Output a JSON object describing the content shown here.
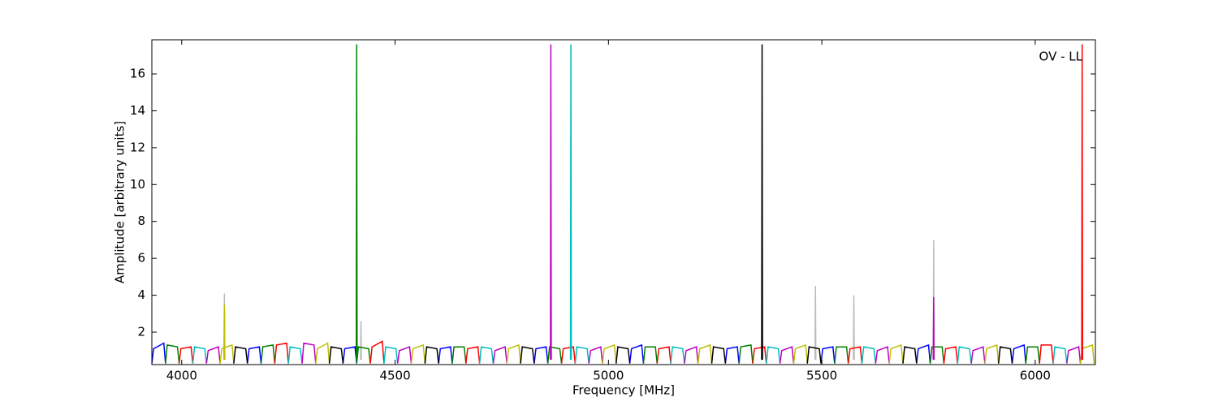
{
  "chart_data": {
    "type": "line",
    "annotation": "OV - LL",
    "xlabel": "Frequency [MHz]",
    "ylabel": "Amplitude [arbitrary units]",
    "xlim": [
      3930,
      6141
    ],
    "ylim": [
      0.24,
      17.85
    ],
    "xticks": [
      4000,
      4500,
      5000,
      5500,
      6000
    ],
    "yticks": [
      2,
      4,
      6,
      8,
      10,
      12,
      14,
      16
    ],
    "series": [
      {
        "color": "#bbbbbb",
        "x": [
          4099,
          4100,
          4101,
          null,
          4419,
          4420,
          4421,
          null,
          5484,
          5485,
          5486,
          null,
          5574,
          5575,
          5576,
          null,
          5761,
          5762,
          5763
        ],
        "values": [
          0.5,
          4.1,
          0.5,
          null,
          0.5,
          2.6,
          0.5,
          null,
          0.5,
          4.5,
          0.5,
          null,
          0.5,
          4.0,
          0.5,
          null,
          0.5,
          7.0,
          0.5
        ]
      },
      {
        "color": "#0000ff",
        "x": [
          3930,
          3934,
          3958,
          3962,
          null,
          4154,
          4158,
          4182,
          4186,
          null,
          4378,
          4382,
          4406,
          4410,
          null,
          4602,
          4606,
          4630,
          4634,
          null,
          4826,
          4830,
          4854,
          4858,
          null,
          5050,
          5054,
          5078,
          5082,
          null,
          5274,
          5278,
          5302,
          5306,
          null,
          5498,
          5502,
          5526,
          5530,
          null,
          5722,
          5726,
          5750,
          5754,
          null,
          5946,
          5950,
          5974,
          5978
        ],
        "values": [
          0.3,
          1.1,
          1.4,
          0.3,
          null,
          0.3,
          1.1,
          1.2,
          0.3,
          null,
          0.3,
          1.1,
          1.2,
          0.3,
          null,
          0.3,
          1.1,
          1.2,
          0.3,
          null,
          0.3,
          1.1,
          1.2,
          0.3,
          null,
          0.3,
          1.1,
          1.3,
          0.3,
          null,
          0.3,
          1.1,
          1.2,
          0.3,
          null,
          0.3,
          1.1,
          1.2,
          0.3,
          null,
          0.3,
          1.1,
          1.3,
          0.3,
          null,
          0.3,
          1.1,
          1.3,
          0.3
        ]
      },
      {
        "color": "#008000",
        "x": [
          3962,
          3966,
          3990,
          3994,
          null,
          4186,
          4190,
          4214,
          4218,
          null,
          4410,
          4414,
          4438,
          4442,
          null,
          4634,
          4638,
          4662,
          4666,
          null,
          4858,
          4862,
          4886,
          4890,
          null,
          5082,
          5086,
          5110,
          5114,
          null,
          5306,
          5310,
          5334,
          5338,
          null,
          5530,
          5534,
          5558,
          5562,
          null,
          5754,
          5758,
          5782,
          5786,
          null,
          5978,
          5982,
          6006,
          6010
        ],
        "values": [
          0.3,
          1.3,
          1.2,
          0.3,
          null,
          0.3,
          1.2,
          1.3,
          0.3,
          null,
          0.3,
          1.2,
          1.1,
          0.3,
          null,
          0.3,
          1.2,
          1.2,
          0.3,
          null,
          0.3,
          1.2,
          1.1,
          0.3,
          null,
          0.3,
          1.2,
          1.2,
          0.3,
          null,
          0.3,
          1.2,
          1.3,
          0.3,
          null,
          0.3,
          1.2,
          1.2,
          0.3,
          null,
          0.3,
          1.2,
          1.2,
          0.3,
          null,
          0.3,
          1.2,
          1.2,
          0.3
        ]
      },
      {
        "color": "#ff0000",
        "x": [
          3994,
          3998,
          4022,
          4026,
          null,
          4218,
          4222,
          4246,
          4250,
          null,
          4442,
          4446,
          4470,
          4474,
          null,
          4666,
          4670,
          4694,
          4698,
          null,
          4890,
          4894,
          4918,
          4922,
          null,
          5114,
          5118,
          5142,
          5146,
          null,
          5338,
          5342,
          5366,
          5370,
          null,
          5562,
          5566,
          5590,
          5594,
          null,
          5786,
          5790,
          5814,
          5818,
          null,
          6010,
          6014,
          6038,
          6042
        ],
        "values": [
          0.3,
          1.1,
          1.2,
          0.3,
          null,
          0.3,
          1.3,
          1.4,
          0.3,
          null,
          0.3,
          1.2,
          1.5,
          0.3,
          null,
          0.3,
          1.1,
          1.2,
          0.3,
          null,
          0.3,
          1.1,
          1.2,
          0.3,
          null,
          0.3,
          1.1,
          1.2,
          0.3,
          null,
          0.3,
          1.1,
          1.2,
          0.3,
          null,
          0.3,
          1.1,
          1.2,
          0.3,
          null,
          0.3,
          1.1,
          1.2,
          0.3,
          null,
          0.3,
          1.3,
          1.3,
          0.3
        ]
      },
      {
        "color": "#00bfbf",
        "x": [
          4026,
          4030,
          4054,
          4058,
          null,
          4250,
          4254,
          4278,
          4282,
          null,
          4474,
          4478,
          4502,
          4506,
          null,
          4698,
          4702,
          4726,
          4730,
          null,
          4922,
          4926,
          4950,
          4954,
          null,
          5146,
          5150,
          5174,
          5178,
          null,
          5370,
          5374,
          5398,
          5402,
          null,
          5594,
          5598,
          5622,
          5626,
          null,
          5818,
          5822,
          5846,
          5850,
          null,
          6042,
          6046,
          6070,
          6074
        ],
        "values": [
          0.3,
          1.2,
          1.1,
          0.3,
          null,
          0.3,
          1.2,
          1.1,
          0.3,
          null,
          0.3,
          1.2,
          1.1,
          0.3,
          null,
          0.3,
          1.2,
          1.1,
          0.3,
          null,
          0.3,
          1.2,
          1.1,
          0.3,
          null,
          0.3,
          1.2,
          1.1,
          0.3,
          null,
          0.3,
          1.2,
          1.1,
          0.3,
          null,
          0.3,
          1.2,
          1.1,
          0.3,
          null,
          0.3,
          1.2,
          1.1,
          0.3,
          null,
          0.3,
          1.2,
          1.1,
          0.3
        ]
      },
      {
        "color": "#bf00bf",
        "x": [
          4058,
          4062,
          4086,
          4090,
          null,
          4282,
          4286,
          4310,
          4314,
          null,
          4506,
          4510,
          4534,
          4538,
          null,
          4730,
          4734,
          4758,
          4762,
          null,
          4954,
          4958,
          4982,
          4986,
          null,
          5178,
          5182,
          5206,
          5210,
          null,
          5402,
          5406,
          5430,
          5434,
          null,
          5626,
          5630,
          5654,
          5658,
          null,
          5850,
          5854,
          5878,
          5882,
          null,
          6074,
          6078,
          6102,
          6106
        ],
        "values": [
          0.3,
          1.0,
          1.2,
          0.3,
          null,
          0.3,
          1.4,
          1.3,
          0.3,
          null,
          0.3,
          1.0,
          1.2,
          0.3,
          null,
          0.3,
          1.0,
          1.2,
          0.3,
          null,
          0.3,
          1.0,
          1.2,
          0.3,
          null,
          0.3,
          1.0,
          1.2,
          0.3,
          null,
          0.3,
          1.0,
          1.2,
          0.3,
          null,
          0.3,
          1.0,
          1.2,
          0.3,
          null,
          0.3,
          1.0,
          1.2,
          0.3,
          null,
          0.3,
          1.0,
          1.2,
          0.3
        ]
      },
      {
        "color": "#bfbf00",
        "x": [
          4090,
          4094,
          4118,
          4122,
          null,
          4314,
          4318,
          4342,
          4346,
          null,
          4538,
          4542,
          4566,
          4570,
          null,
          4762,
          4766,
          4790,
          4794,
          null,
          4986,
          4990,
          5014,
          5018,
          null,
          5210,
          5214,
          5238,
          5242,
          null,
          5434,
          5438,
          5462,
          5466,
          null,
          5658,
          5662,
          5686,
          5690,
          null,
          5882,
          5886,
          5910,
          5914,
          null,
          6106,
          6110,
          6134,
          6138
        ],
        "values": [
          0.3,
          1.1,
          1.3,
          0.3,
          null,
          0.3,
          1.1,
          1.4,
          0.3,
          null,
          0.3,
          1.1,
          1.3,
          0.3,
          null,
          0.3,
          1.1,
          1.3,
          0.3,
          null,
          0.3,
          1.1,
          1.3,
          0.3,
          null,
          0.3,
          1.1,
          1.3,
          0.3,
          null,
          0.3,
          1.1,
          1.3,
          0.3,
          null,
          0.3,
          1.1,
          1.3,
          0.3,
          null,
          0.3,
          1.1,
          1.3,
          0.3,
          null,
          0.3,
          1.1,
          1.3,
          0.3
        ]
      },
      {
        "color": "#000000",
        "x": [
          4122,
          4126,
          4150,
          4154,
          null,
          4346,
          4350,
          4374,
          4378,
          null,
          4570,
          4574,
          4598,
          4602,
          null,
          4794,
          4798,
          4822,
          4826,
          null,
          5018,
          5022,
          5046,
          5050,
          null,
          5242,
          5246,
          5270,
          5274,
          null,
          5466,
          5470,
          5494,
          5498,
          null,
          5690,
          5694,
          5718,
          5722,
          null,
          5914,
          5918,
          5942,
          5946
        ],
        "values": [
          0.3,
          1.2,
          1.1,
          0.3,
          null,
          0.3,
          1.2,
          1.1,
          0.3,
          null,
          0.3,
          1.2,
          1.1,
          0.3,
          null,
          0.3,
          1.2,
          1.1,
          0.3,
          null,
          0.3,
          1.2,
          1.1,
          0.3,
          null,
          0.3,
          1.2,
          1.1,
          0.3,
          null,
          0.3,
          1.2,
          1.1,
          0.3,
          null,
          0.3,
          1.2,
          1.1,
          0.3,
          null,
          0.3,
          1.2,
          1.1,
          0.3
        ]
      },
      {
        "color": "#008000",
        "x": [
          4409,
          4410,
          4411
        ],
        "values": [
          0.5,
          17.6,
          0.5
        ]
      },
      {
        "color": "#bf00bf",
        "x": [
          4864,
          4865,
          4866,
          null,
          5761,
          5762,
          5763
        ],
        "values": [
          0.5,
          17.6,
          0.5,
          null,
          0.5,
          3.9,
          0.5
        ]
      },
      {
        "color": "#00bfbf",
        "x": [
          4911,
          4912,
          4913
        ],
        "values": [
          0.5,
          17.6,
          0.5
        ]
      },
      {
        "color": "#000000",
        "x": [
          5359,
          5360,
          5361
        ],
        "values": [
          0.5,
          17.6,
          0.5
        ]
      },
      {
        "color": "#bfbf00",
        "x": [
          4099,
          4100,
          4101
        ],
        "values": [
          0.5,
          3.5,
          0.5
        ]
      },
      {
        "color": "#ff0000",
        "x": [
          6109,
          6110,
          6111
        ],
        "values": [
          0.5,
          17.6,
          0.5
        ]
      }
    ]
  }
}
